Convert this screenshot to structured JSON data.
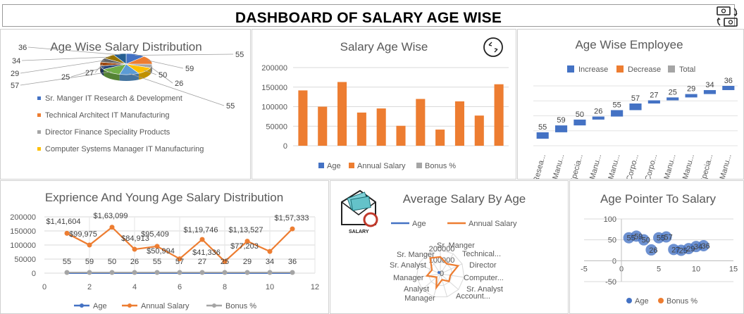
{
  "dashboard": {
    "title": "DASHBOARD OF SALARY AGE WISE",
    "corner_icon": "money-exchange-icon"
  },
  "colors": {
    "blue": "#4472C4",
    "orange": "#ED7D31",
    "gray": "#A5A5A5",
    "yellow": "#FFC000",
    "lightblue": "#5B9BD5",
    "green": "#70AD47",
    "darkblue": "#264478"
  },
  "chart_data": [
    {
      "id": "pie",
      "type": "pie",
      "title": "Age Wise Salary Distribution",
      "values": [
        55,
        59,
        26,
        50,
        55,
        57,
        25,
        27,
        29,
        34,
        36
      ],
      "labels": [
        "55",
        "59",
        "26",
        "50",
        "55",
        "57",
        "25",
        "27",
        "29",
        "34",
        "36"
      ],
      "legend": [
        "Sr. Manger IT Research & Development",
        "Technical Architect IT Manufacturing",
        "Director Finance Speciality Products",
        "Computer Systems Manager IT Manufacturing"
      ],
      "legend_position": "left"
    },
    {
      "id": "salary_age",
      "type": "bar",
      "title": "Salary Age Wise",
      "values": [
        141604,
        99975,
        163099,
        84913,
        95409,
        50994,
        119746,
        41336,
        113527,
        77203,
        157333
      ],
      "ylim": [
        0,
        200000
      ],
      "yticks": [
        "0",
        "50000",
        "100000",
        "150000",
        "200000"
      ],
      "legend": [
        "Age",
        "Annual Salary",
        "Bonus %"
      ],
      "legend_position": "bottom",
      "grid": true
    },
    {
      "id": "waterfall",
      "type": "bar",
      "title": "Age Wise Employee",
      "values": [
        55,
        59,
        50,
        26,
        55,
        57,
        27,
        25,
        29,
        34,
        36
      ],
      "categories": [
        "Resea...",
        "Manu...",
        "Specia...",
        "Manu...",
        "Manu...",
        "Corpo...",
        "Corpo...",
        "Manu...",
        "Manu...",
        "Specia...",
        "Manu..."
      ],
      "legend": [
        "Increase",
        "Decrease",
        "Total"
      ],
      "legend_position": "top",
      "grid": true
    },
    {
      "id": "experience",
      "type": "line",
      "title": "Exprience And Young Age Salary Distribution",
      "x": [
        1,
        2,
        3,
        4,
        5,
        6,
        7,
        8,
        9,
        10,
        11
      ],
      "xlim": [
        0,
        12
      ],
      "xticks": [
        "0",
        "2",
        "4",
        "6",
        "8",
        "10",
        "12"
      ],
      "ylim": [
        0,
        200000
      ],
      "yticks": [
        "0",
        "50000",
        "100000",
        "150000",
        "200000"
      ],
      "series": [
        {
          "name": "Age",
          "values": [
            55,
            59,
            50,
            26,
            55,
            57,
            27,
            25,
            29,
            34,
            36
          ],
          "labels": [
            "55",
            "59",
            "50",
            "26",
            "55",
            "57",
            "27",
            "25",
            "29",
            "34",
            "36"
          ]
        },
        {
          "name": "Annual Salary",
          "values": [
            141604,
            99975,
            163099,
            84913,
            95409,
            50994,
            119746,
            41336,
            113527,
            77203,
            157333
          ],
          "labels": [
            "$1,41,604",
            "$99,975",
            "$1,63,099",
            "$84,913",
            "$95,409",
            "$50,994",
            "$1,19,746",
            "$41,336",
            "$1,13,527",
            "$77,203",
            "$1,57,333"
          ]
        },
        {
          "name": "Bonus %",
          "values": [
            0,
            0,
            0,
            0,
            0,
            0,
            0,
            0,
            0,
            0,
            0
          ]
        }
      ],
      "legend_position": "bottom",
      "grid": true
    },
    {
      "id": "radar",
      "type": "radar",
      "title": "Average Salary By Age",
      "categories": [
        "Sr. Manger",
        "Technical...",
        "Director",
        "Computer...",
        "Sr. Analyst",
        "Account...",
        "Manager",
        "Analyst",
        "Manager",
        "Sr. Analyst",
        "Sr. Manger"
      ],
      "series": [
        {
          "name": "Age",
          "values": [
            55,
            59,
            26,
            50,
            55,
            57,
            25,
            27,
            29,
            34,
            36
          ]
        },
        {
          "name": "Annual Salary",
          "values": [
            141604,
            99975,
            163099,
            84913,
            95409,
            50994,
            119746,
            41336,
            113527,
            77203,
            157333
          ]
        }
      ],
      "rticks": [
        "0",
        "100000",
        "200000"
      ],
      "icon": "salary-envelope-icon",
      "icon_label": "SALARY",
      "legend_position": "top"
    },
    {
      "id": "scatter",
      "type": "scatter",
      "title": "Age Pointer To Salary",
      "x": [
        1,
        2,
        3,
        4,
        5,
        6,
        7,
        8,
        9,
        10,
        11
      ],
      "y": [
        55,
        59,
        50,
        26,
        55,
        57,
        27,
        25,
        29,
        34,
        36
      ],
      "labels": [
        "55",
        "59",
        "50",
        "26",
        "55",
        "57",
        "27",
        "25",
        "29",
        "34",
        "36"
      ],
      "xlim": [
        -5,
        15
      ],
      "xticks": [
        "-5",
        "0",
        "5",
        "10",
        "15"
      ],
      "ylim": [
        -50,
        100
      ],
      "yticks": [
        "-50",
        "0",
        "50",
        "100"
      ],
      "legend": [
        "Age",
        "Bonus %"
      ],
      "legend_position": "bottom",
      "grid": true
    }
  ]
}
